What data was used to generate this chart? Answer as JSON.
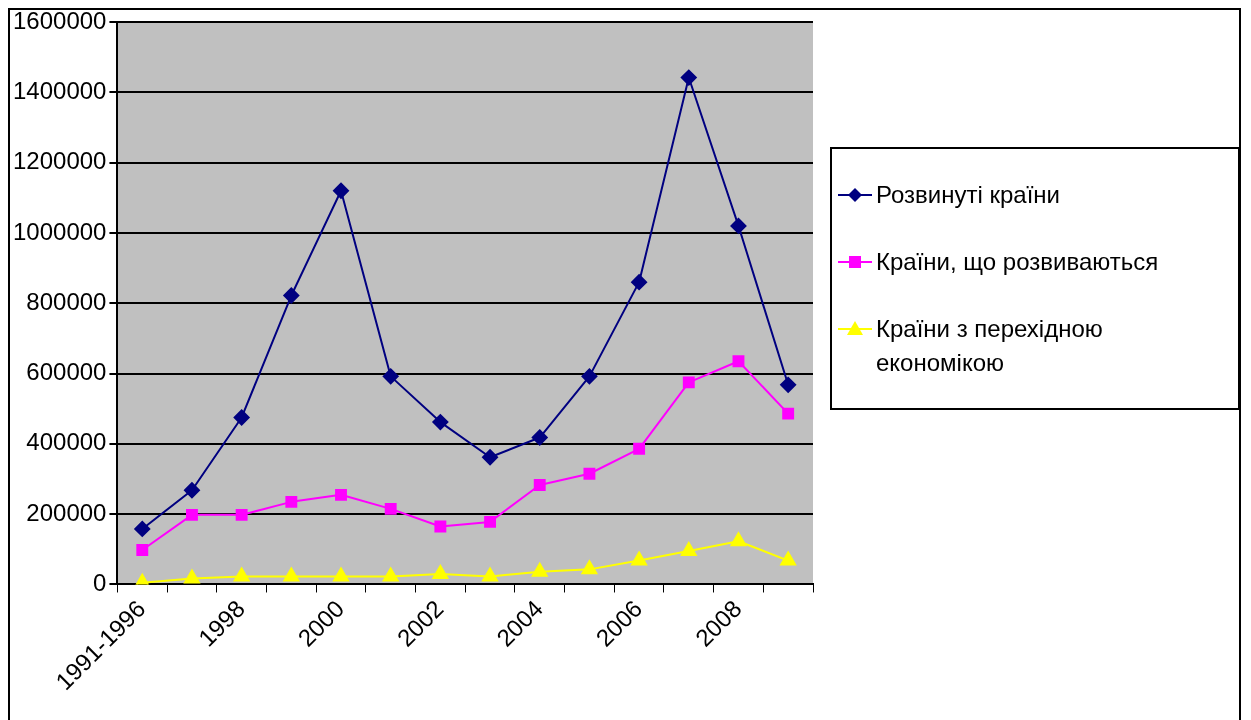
{
  "chart_data": {
    "type": "line",
    "categories": [
      "1991-1996",
      null,
      "1998",
      null,
      "2000",
      null,
      "2002",
      null,
      "2004",
      null,
      "2006",
      null,
      "2008",
      null
    ],
    "series": [
      {
        "name": "Розвинуті країни",
        "color": "#000080",
        "marker": "diamond",
        "values": [
          158000,
          268000,
          475000,
          822000,
          1120000,
          592000,
          462000,
          362000,
          418000,
          592000,
          860000,
          1442000,
          1020000,
          568000
        ]
      },
      {
        "name": "Країни, що розвиваються",
        "color": "#ff00ff",
        "marker": "square",
        "values": [
          98000,
          198000,
          198000,
          235000,
          255000,
          215000,
          165000,
          178000,
          283000,
          315000,
          386000,
          575000,
          635000,
          486000
        ]
      },
      {
        "name": "Країни з перехідною економікою",
        "color": "#ffff00",
        "marker": "triangle",
        "values": [
          5000,
          17000,
          23000,
          23000,
          23000,
          23000,
          30000,
          23000,
          36000,
          43000,
          68000,
          95000,
          123000,
          68000
        ]
      }
    ],
    "ylim": [
      0,
      1600000
    ],
    "yticks": [
      0,
      200000,
      400000,
      600000,
      800000,
      1000000,
      1200000,
      1400000,
      1600000
    ],
    "grid": "y",
    "legend": "right",
    "line_style": "solid"
  }
}
